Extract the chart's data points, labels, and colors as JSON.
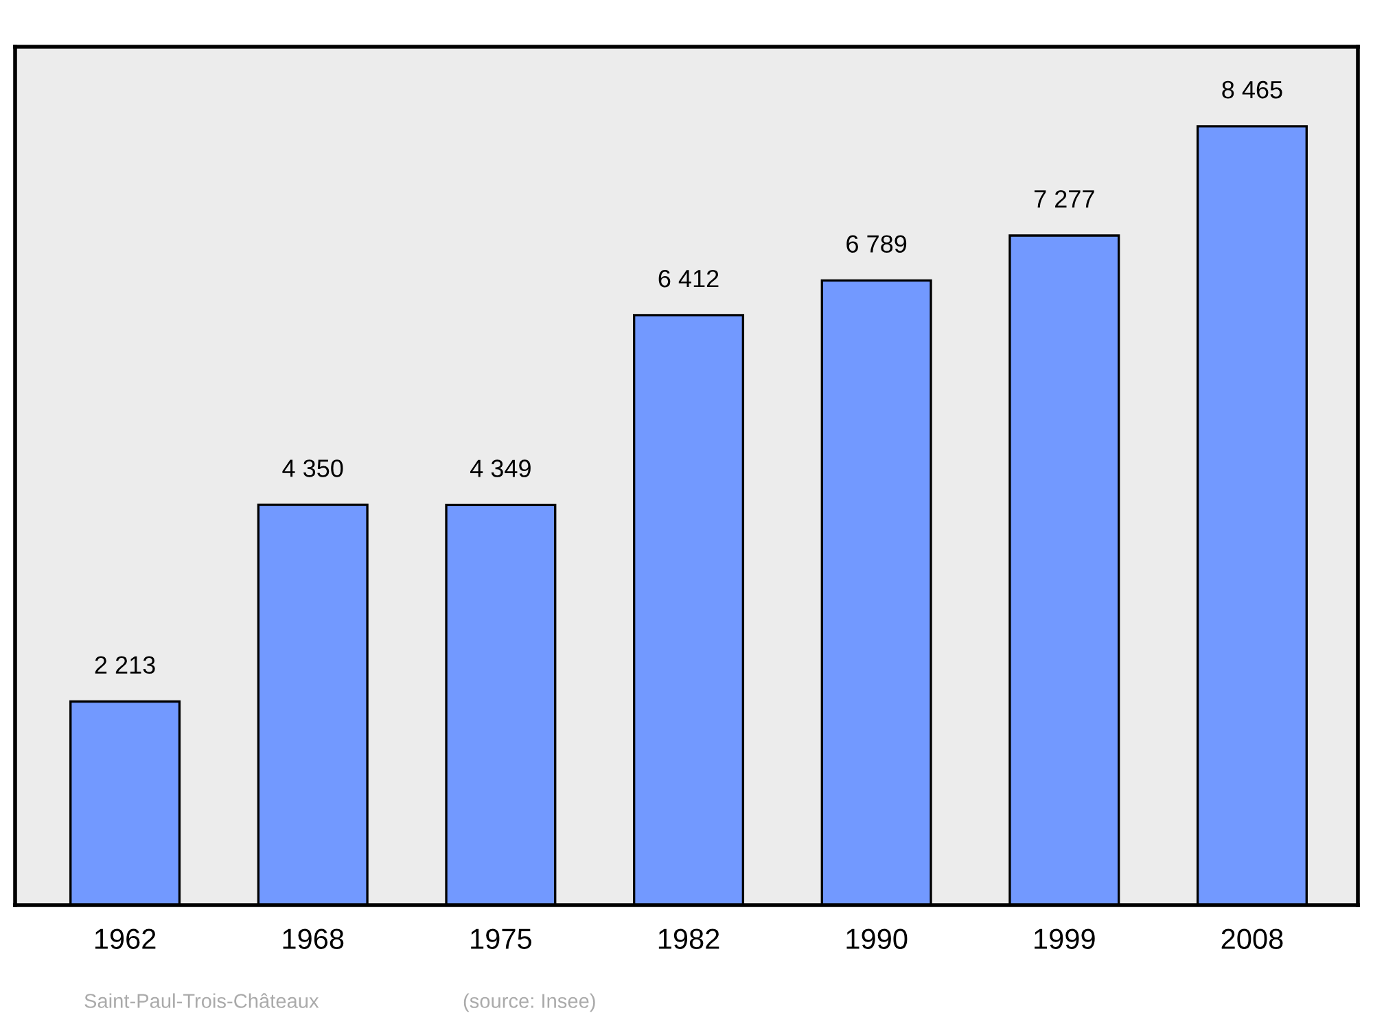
{
  "chart_data": {
    "type": "bar",
    "categories": [
      "1962",
      "1968",
      "1975",
      "1982",
      "1990",
      "1999",
      "2008"
    ],
    "values": [
      2213,
      4350,
      4349,
      6412,
      6789,
      7277,
      8465
    ],
    "value_labels": [
      "2 213",
      "4 350",
      "4 349",
      "6 412",
      "6 789",
      "7 277",
      "8 465"
    ],
    "color": "#7299ff",
    "ylim": [
      0,
      9330
    ],
    "grid": false,
    "annotations": [
      "Saint-Paul-Trois-Châteaux",
      "(source: Insee)"
    ]
  }
}
